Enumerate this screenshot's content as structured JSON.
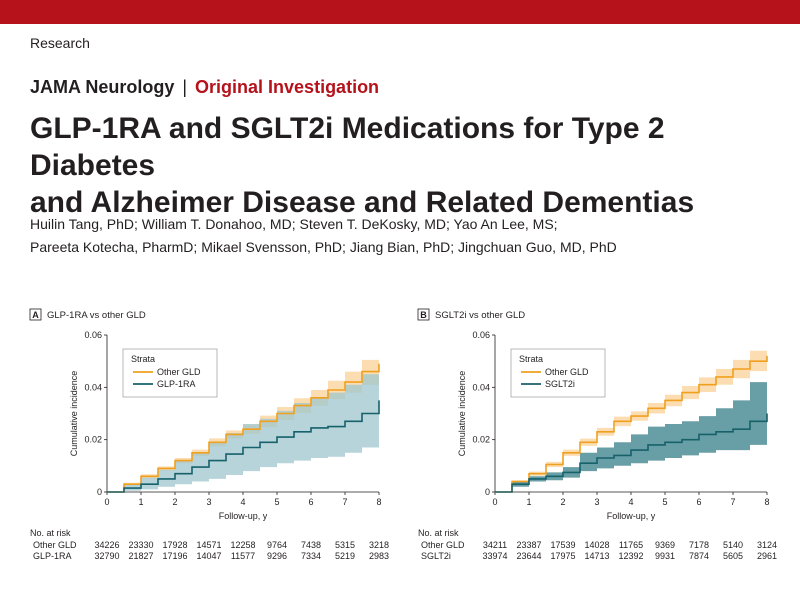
{
  "header": {
    "section": "Research",
    "journal": "JAMA Neurology",
    "separator": "|",
    "article_type": "Original Investigation"
  },
  "article": {
    "title_line1": "GLP-1RA and SGLT2i Medications for Type 2 Diabetes",
    "title_line2": "and Alzheimer Disease and Related Dementias",
    "authors_line1": "Huilin Tang, PhD; William T. Donahoo, MD; Steven T. DeKosky, MD; Yao An Lee, MS;",
    "authors_line2": "Pareeta Kotecha, PharmD; Mikael Svensson, PhD; Jiang Bian, PhD; Jingchuan Guo, MD, PhD"
  },
  "colors": {
    "brand_red": "#b5121b",
    "other_gld": "#f0a020",
    "other_gld_band": "#fcd9a8",
    "treated": "#17616b",
    "treated_band_a": "#9fc6cd",
    "treated_band_b": "#4e8d95"
  },
  "chart_data": [
    {
      "type": "line",
      "panel_label": "A",
      "panel_title": "GLP-1RA vs other GLD",
      "xlabel": "Follow-up, y",
      "ylabel": "Cumulative incidence",
      "xlim": [
        0,
        8
      ],
      "ylim": [
        0,
        0.06
      ],
      "xticks": [
        "0",
        "1",
        "2",
        "3",
        "4",
        "5",
        "6",
        "7",
        "8"
      ],
      "yticks": [
        "0",
        "0.02",
        "0.04",
        "0.06"
      ],
      "legend_title": "Strata",
      "legend_position": "top-left",
      "series": [
        {
          "name": "Other GLD",
          "color": "#f0a020",
          "x": [
            0,
            0.5,
            1,
            1.5,
            2,
            2.5,
            3,
            3.5,
            4,
            4.5,
            5,
            5.5,
            6,
            6.5,
            7,
            7.5,
            8
          ],
          "y": [
            0,
            0.003,
            0.006,
            0.009,
            0.012,
            0.015,
            0.019,
            0.022,
            0.024,
            0.027,
            0.03,
            0.033,
            0.036,
            0.039,
            0.042,
            0.046,
            0.049
          ],
          "lower": [
            0,
            0.0025,
            0.0052,
            0.0082,
            0.011,
            0.0138,
            0.0175,
            0.0205,
            0.0222,
            0.0248,
            0.0275,
            0.0302,
            0.033,
            0.0355,
            0.038,
            0.041,
            0.044
          ],
          "upper": [
            0,
            0.0035,
            0.0068,
            0.0098,
            0.013,
            0.0162,
            0.0205,
            0.0235,
            0.0258,
            0.0292,
            0.0325,
            0.0358,
            0.039,
            0.0425,
            0.046,
            0.0505,
            0.0535
          ]
        },
        {
          "name": "GLP-1RA",
          "color": "#17616b",
          "x": [
            0,
            0.5,
            1,
            1.5,
            2,
            2.5,
            3,
            3.5,
            4,
            4.5,
            5,
            5.5,
            6,
            6.5,
            7,
            7.5,
            8
          ],
          "y": [
            0,
            0.0015,
            0.003,
            0.005,
            0.007,
            0.0095,
            0.012,
            0.0145,
            0.017,
            0.019,
            0.021,
            0.023,
            0.0245,
            0.025,
            0.027,
            0.03,
            0.035
          ],
          "lower": [
            0,
            0.0005,
            0.001,
            0.002,
            0.003,
            0.004,
            0.005,
            0.0065,
            0.008,
            0.0095,
            0.011,
            0.012,
            0.013,
            0.0135,
            0.015,
            0.017,
            0.021
          ],
          "upper": [
            0,
            0.003,
            0.0055,
            0.0085,
            0.012,
            0.015,
            0.019,
            0.0225,
            0.026,
            0.028,
            0.031,
            0.034,
            0.036,
            0.038,
            0.041,
            0.045,
            0.049
          ]
        }
      ],
      "risk_table": {
        "header": "No. at risk",
        "rows": [
          {
            "label": "Other GLD",
            "values": [
              "34226",
              "23330",
              "17928",
              "14571",
              "12258",
              "9764",
              "7438",
              "5315",
              "3218"
            ]
          },
          {
            "label": "GLP-1RA",
            "values": [
              "32790",
              "21827",
              "17196",
              "14047",
              "11577",
              "9296",
              "7334",
              "5219",
              "2983"
            ]
          }
        ]
      }
    },
    {
      "type": "line",
      "panel_label": "B",
      "panel_title": "SGLT2i vs other GLD",
      "xlabel": "Follow-up, y",
      "ylabel": "Cumulative incidence",
      "xlim": [
        0,
        8
      ],
      "ylim": [
        0,
        0.06
      ],
      "xticks": [
        "0",
        "1",
        "2",
        "3",
        "4",
        "5",
        "6",
        "7",
        "8"
      ],
      "yticks": [
        "0",
        "0.02",
        "0.04",
        "0.06"
      ],
      "legend_title": "Strata",
      "legend_position": "top-left",
      "series": [
        {
          "name": "Other GLD",
          "color": "#f0a020",
          "x": [
            0,
            0.5,
            1,
            1.5,
            2,
            2.5,
            3,
            3.5,
            4,
            4.5,
            5,
            5.5,
            6,
            6.5,
            7,
            7.5,
            8
          ],
          "y": [
            0,
            0.004,
            0.007,
            0.0105,
            0.015,
            0.019,
            0.023,
            0.027,
            0.029,
            0.032,
            0.035,
            0.038,
            0.041,
            0.044,
            0.047,
            0.05,
            0.052
          ],
          "lower": [
            0,
            0.0035,
            0.0062,
            0.0095,
            0.0138,
            0.0176,
            0.0215,
            0.0252,
            0.0272,
            0.03,
            0.0328,
            0.0355,
            0.0382,
            0.041,
            0.0435,
            0.0462,
            0.048
          ],
          "upper": [
            0,
            0.0045,
            0.0078,
            0.0115,
            0.0162,
            0.0204,
            0.0245,
            0.0288,
            0.0308,
            0.034,
            0.0372,
            0.0405,
            0.0438,
            0.047,
            0.0505,
            0.054,
            0.0565
          ]
        },
        {
          "name": "SGLT2i",
          "color": "#17616b",
          "x": [
            0,
            0.5,
            1,
            1.5,
            2,
            2.5,
            3,
            3.5,
            4,
            4.5,
            5,
            5.5,
            6,
            6.5,
            7,
            7.5,
            8
          ],
          "y": [
            0,
            0.003,
            0.005,
            0.006,
            0.0075,
            0.011,
            0.013,
            0.014,
            0.016,
            0.018,
            0.019,
            0.02,
            0.022,
            0.023,
            0.024,
            0.027,
            0.03
          ],
          "lower": [
            0,
            0.002,
            0.004,
            0.0045,
            0.0055,
            0.008,
            0.009,
            0.01,
            0.011,
            0.012,
            0.013,
            0.014,
            0.015,
            0.016,
            0.016,
            0.018,
            0.018
          ],
          "upper": [
            0,
            0.004,
            0.006,
            0.0075,
            0.0095,
            0.015,
            0.017,
            0.019,
            0.022,
            0.025,
            0.026,
            0.027,
            0.029,
            0.032,
            0.035,
            0.042,
            0.043
          ]
        }
      ],
      "risk_table": {
        "header": "No. at risk",
        "rows": [
          {
            "label": "Other GLD",
            "values": [
              "34211",
              "23387",
              "17539",
              "14028",
              "11765",
              "9369",
              "7178",
              "5140",
              "3124"
            ]
          },
          {
            "label": "SGLT2i",
            "values": [
              "33974",
              "23644",
              "17975",
              "14713",
              "12392",
              "9931",
              "7874",
              "5605",
              "2961"
            ]
          }
        ]
      }
    }
  ]
}
